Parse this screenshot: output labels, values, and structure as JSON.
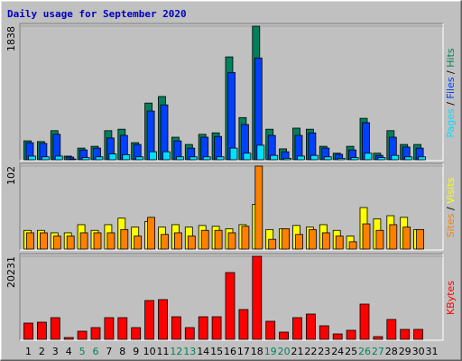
{
  "chart_data": [
    {
      "type": "bar",
      "title": "Daily usage for September 2020",
      "legend_separator": " / ",
      "ylim": [
        0,
        1838
      ],
      "yticks": [
        1838
      ],
      "series": [
        {
          "name": "Hits",
          "color": "#00805c",
          "values": [
            260,
            250,
            400,
            50,
            160,
            185,
            400,
            420,
            235,
            780,
            870,
            310,
            210,
            350,
            370,
            1415,
            580,
            1838,
            420,
            150,
            435,
            420,
            185,
            90,
            185,
            570,
            90,
            400,
            210,
            210,
            0
          ]
        },
        {
          "name": "Files",
          "color": "#0040ff",
          "values": [
            235,
            225,
            350,
            37,
            135,
            160,
            300,
            335,
            210,
            670,
            755,
            260,
            160,
            310,
            320,
            1200,
            485,
            1400,
            335,
            110,
            335,
            370,
            160,
            75,
            135,
            510,
            60,
            310,
            175,
            160,
            0
          ]
        },
        {
          "name": "Pages",
          "color": "#00e0ff",
          "values": [
            50,
            40,
            50,
            10,
            30,
            40,
            80,
            70,
            40,
            110,
            110,
            40,
            40,
            40,
            40,
            160,
            90,
            200,
            60,
            20,
            50,
            60,
            40,
            20,
            30,
            90,
            30,
            60,
            40,
            40,
            0
          ]
        }
      ]
    },
    {
      "type": "bar",
      "ylim": [
        0,
        102
      ],
      "yticks": [
        102
      ],
      "series": [
        {
          "name": "Visits",
          "color": "#ffff00",
          "values": [
            23,
            23,
            20,
            20,
            30,
            23,
            30,
            38,
            27,
            34,
            27,
            30,
            27,
            29,
            28,
            25,
            30,
            55,
            24,
            25,
            29,
            27,
            30,
            23,
            16,
            51,
            37,
            41,
            39,
            24,
            0
          ]
        },
        {
          "name": "Sites",
          "color": "#ff8000",
          "values": [
            20,
            20,
            16,
            16,
            20,
            20,
            20,
            24,
            16,
            39,
            18,
            20,
            16,
            23,
            23,
            20,
            28,
            102,
            12,
            25,
            18,
            24,
            20,
            16,
            9,
            31,
            23,
            30,
            27,
            24,
            0
          ]
        }
      ]
    },
    {
      "type": "bar",
      "ylim": [
        0,
        20231
      ],
      "yticks": [
        20231
      ],
      "series": [
        {
          "name": "KBytes",
          "color": "#ff0000",
          "values": [
            3960,
            4180,
            5280,
            440,
            1980,
            2860,
            5280,
            5280,
            2860,
            9460,
            9680,
            5500,
            2860,
            5500,
            5500,
            16270,
            7260,
            20231,
            4400,
            1760,
            5280,
            6160,
            3300,
            1320,
            2200,
            8580,
            660,
            4840,
            2420,
            2420,
            0
          ]
        }
      ],
      "categories": [
        "1",
        "2",
        "3",
        "4",
        "5",
        "6",
        "7",
        "8",
        "9",
        "10",
        "11",
        "12",
        "13",
        "14",
        "15",
        "16",
        "17",
        "18",
        "19",
        "20",
        "21",
        "22",
        "23",
        "24",
        "25",
        "26",
        "27",
        "28",
        "29",
        "30",
        "31"
      ],
      "category_colors": [
        "#000000",
        "#000000",
        "#000000",
        "#000000",
        "#00805c",
        "#00805c",
        "#000000",
        "#000000",
        "#000000",
        "#000000",
        "#000000",
        "#00805c",
        "#00805c",
        "#000000",
        "#000000",
        "#000000",
        "#000000",
        "#000000",
        "#00805c",
        "#00805c",
        "#000000",
        "#000000",
        "#000000",
        "#000000",
        "#000000",
        "#00805c",
        "#00805c",
        "#000000",
        "#000000",
        "#000000",
        "#000000"
      ]
    }
  ]
}
